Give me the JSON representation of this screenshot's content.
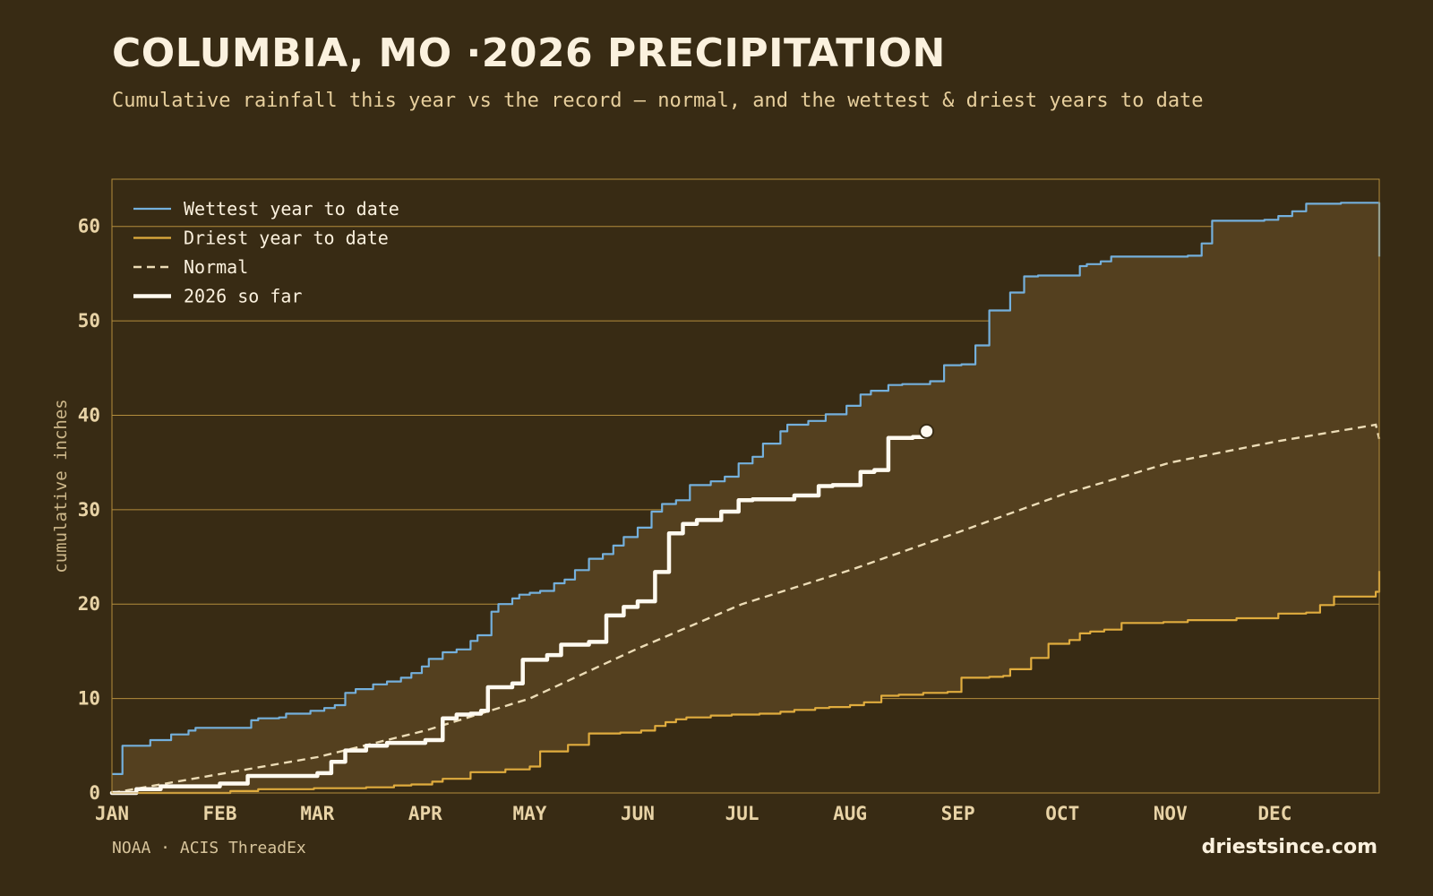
{
  "header": {
    "title": "COLUMBIA, MO ·2026 PRECIPITATION",
    "subtitle": "Cumulative rainfall this year vs the record — normal, and the wettest & driest years to date"
  },
  "footer": {
    "source": "NOAA · ACIS ThreadEx",
    "brand": "driestsince.com"
  },
  "colors": {
    "background": "#382b14",
    "band": "#54401f",
    "wettest": "#74b0dc",
    "driest": "#e0ac3e",
    "normal": "#ecdcb6",
    "current": "#fffaf0",
    "grid": "#b38d3c"
  },
  "chart_data": {
    "type": "line",
    "title": "COLUMBIA, MO ·2026 PRECIPITATION",
    "ylabel": "cumulative inches",
    "xlabel": "",
    "ylim": [
      0,
      65
    ],
    "yticks": [
      0,
      10,
      20,
      30,
      40,
      50,
      60
    ],
    "xticks": [
      "JAN",
      "FEB",
      "MAR",
      "APR",
      "MAY",
      "JUN",
      "JUL",
      "AUG",
      "SEP",
      "OCT",
      "NOV",
      "DEC"
    ],
    "grid": "horizontal",
    "legend_position": "top-left",
    "series": [
      {
        "name": "Wettest year to date",
        "style": "solid",
        "x": [
          "2026-01-01",
          "2026-01-04",
          "2026-01-10",
          "2026-01-12",
          "2026-01-18",
          "2026-01-23",
          "2026-01-25",
          "2026-02-02",
          "2026-02-10",
          "2026-02-12",
          "2026-02-18",
          "2026-02-20",
          "2026-02-27",
          "2026-03-03",
          "2026-03-06",
          "2026-03-09",
          "2026-03-12",
          "2026-03-17",
          "2026-03-21",
          "2026-03-25",
          "2026-03-28",
          "2026-03-31",
          "2026-04-02",
          "2026-04-06",
          "2026-04-10",
          "2026-04-14",
          "2026-04-16",
          "2026-04-20",
          "2026-04-22",
          "2026-04-26",
          "2026-04-28",
          "2026-05-01",
          "2026-05-04",
          "2026-05-08",
          "2026-05-11",
          "2026-05-14",
          "2026-05-18",
          "2026-05-22",
          "2026-05-25",
          "2026-05-28",
          "2026-06-01",
          "2026-06-05",
          "2026-06-08",
          "2026-06-12",
          "2026-06-16",
          "2026-06-22",
          "2026-06-26",
          "2026-06-30",
          "2026-07-04",
          "2026-07-07",
          "2026-07-12",
          "2026-07-14",
          "2026-07-20",
          "2026-07-25",
          "2026-07-31",
          "2026-08-04",
          "2026-08-07",
          "2026-08-12",
          "2026-08-16",
          "2026-08-24",
          "2026-08-28",
          "2026-09-02",
          "2026-09-06",
          "2026-09-10",
          "2026-09-13",
          "2026-09-16",
          "2026-09-20",
          "2026-09-24",
          "2026-10-06",
          "2026-10-08",
          "2026-10-12",
          "2026-10-15",
          "2026-10-20",
          "2026-11-06",
          "2026-11-10",
          "2026-11-13",
          "2026-11-28",
          "2026-12-02",
          "2026-12-06",
          "2026-12-10",
          "2026-12-20",
          "2026-12-29",
          "2026-12-31"
        ],
        "values": [
          2,
          5,
          5,
          5.6,
          6.2,
          6.6,
          6.9,
          6.9,
          7.7,
          7.9,
          8.0,
          8.4,
          8.7,
          9.0,
          9.3,
          10.6,
          11.0,
          11.5,
          11.8,
          12.2,
          12.7,
          13.4,
          14.2,
          14.9,
          15.2,
          16.1,
          16.7,
          19.2,
          20.0,
          20.6,
          21.0,
          21.2,
          21.4,
          22.2,
          22.6,
          23.6,
          24.8,
          25.3,
          26.2,
          27.1,
          28.1,
          29.8,
          30.6,
          31.0,
          32.6,
          33.0,
          33.5,
          34.9,
          35.6,
          37.0,
          38.3,
          39.0,
          39.4,
          40.1,
          41.0,
          42.2,
          42.6,
          43.2,
          43.3,
          43.6,
          45.3,
          45.4,
          47.4,
          51.1,
          51.1,
          53.0,
          54.7,
          54.8,
          55.8,
          56.0,
          56.3,
          56.8,
          56.8,
          56.9,
          58.2,
          60.6,
          60.7,
          61.1,
          61.6,
          62.4,
          62.5,
          62.5,
          56.8
        ]
      },
      {
        "name": "Driest year to date",
        "style": "solid",
        "x": [
          "2026-01-01",
          "2026-01-21",
          "2026-02-04",
          "2026-02-12",
          "2026-02-28",
          "2026-03-15",
          "2026-03-23",
          "2026-03-28",
          "2026-04-03",
          "2026-04-06",
          "2026-04-14",
          "2026-04-24",
          "2026-05-01",
          "2026-05-04",
          "2026-05-12",
          "2026-05-18",
          "2026-05-27",
          "2026-06-02",
          "2026-06-06",
          "2026-06-09",
          "2026-06-12",
          "2026-06-15",
          "2026-06-22",
          "2026-06-28",
          "2026-07-06",
          "2026-07-12",
          "2026-07-16",
          "2026-07-22",
          "2026-07-26",
          "2026-08-01",
          "2026-08-05",
          "2026-08-10",
          "2026-08-15",
          "2026-08-22",
          "2026-08-29",
          "2026-09-02",
          "2026-09-10",
          "2026-09-14",
          "2026-09-16",
          "2026-09-22",
          "2026-09-27",
          "2026-10-03",
          "2026-10-06",
          "2026-10-09",
          "2026-10-13",
          "2026-10-18",
          "2026-10-30",
          "2026-11-06",
          "2026-11-20",
          "2026-12-02",
          "2026-12-10",
          "2026-12-14",
          "2026-12-18",
          "2026-12-30",
          "2026-12-31"
        ],
        "values": [
          0,
          0,
          0.2,
          0.4,
          0.5,
          0.6,
          0.8,
          0.9,
          1.2,
          1.5,
          2.2,
          2.5,
          2.8,
          4.4,
          5.1,
          6.3,
          6.4,
          6.6,
          7.1,
          7.5,
          7.8,
          8.0,
          8.2,
          8.3,
          8.4,
          8.6,
          8.8,
          9.0,
          9.1,
          9.3,
          9.6,
          10.3,
          10.4,
          10.6,
          10.7,
          12.2,
          12.3,
          12.4,
          13.1,
          14.3,
          15.8,
          16.2,
          16.9,
          17.1,
          17.3,
          18.0,
          18.1,
          18.3,
          18.5,
          19.0,
          19.1,
          19.9,
          20.8,
          21.3,
          23.5
        ]
      },
      {
        "name": "Normal",
        "style": "dashed",
        "x": [
          "2026-01-01",
          "2026-02-01",
          "2026-03-01",
          "2026-04-01",
          "2026-05-01",
          "2026-06-01",
          "2026-07-01",
          "2026-08-01",
          "2026-09-01",
          "2026-10-01",
          "2026-11-01",
          "2026-12-01",
          "2026-12-30",
          "2026-12-31"
        ],
        "values": [
          0,
          2.0,
          3.8,
          6.6,
          10.0,
          15.3,
          20.0,
          23.6,
          27.6,
          31.6,
          35.0,
          37.2,
          39.0,
          37.5
        ]
      },
      {
        "name": "2026 so far",
        "style": "bold",
        "x": [
          "2026-01-01",
          "2026-01-08",
          "2026-01-15",
          "2026-02-01",
          "2026-02-09",
          "2026-03-01",
          "2026-03-05",
          "2026-03-09",
          "2026-03-15",
          "2026-03-21",
          "2026-04-01",
          "2026-04-06",
          "2026-04-10",
          "2026-04-14",
          "2026-04-17",
          "2026-04-19",
          "2026-04-26",
          "2026-04-29",
          "2026-05-06",
          "2026-05-10",
          "2026-05-18",
          "2026-05-23",
          "2026-05-28",
          "2026-06-01",
          "2026-06-06",
          "2026-06-10",
          "2026-06-14",
          "2026-06-18",
          "2026-06-25",
          "2026-06-30",
          "2026-07-04",
          "2026-07-16",
          "2026-07-23",
          "2026-07-27",
          "2026-08-01",
          "2026-08-04",
          "2026-08-08",
          "2026-08-12",
          "2026-08-19",
          "2026-08-23"
        ],
        "values": [
          0,
          0.4,
          0.7,
          1.0,
          1.8,
          2.1,
          3.3,
          4.5,
          5.0,
          5.3,
          5.6,
          7.9,
          8.3,
          8.4,
          8.7,
          11.2,
          11.6,
          14.1,
          14.6,
          15.7,
          16.0,
          18.8,
          19.7,
          20.3,
          23.4,
          27.5,
          28.5,
          28.9,
          29.8,
          31.0,
          31.1,
          31.5,
          32.5,
          32.6,
          32.6,
          34.0,
          34.2,
          37.6,
          37.7,
          38.3
        ]
      }
    ]
  }
}
